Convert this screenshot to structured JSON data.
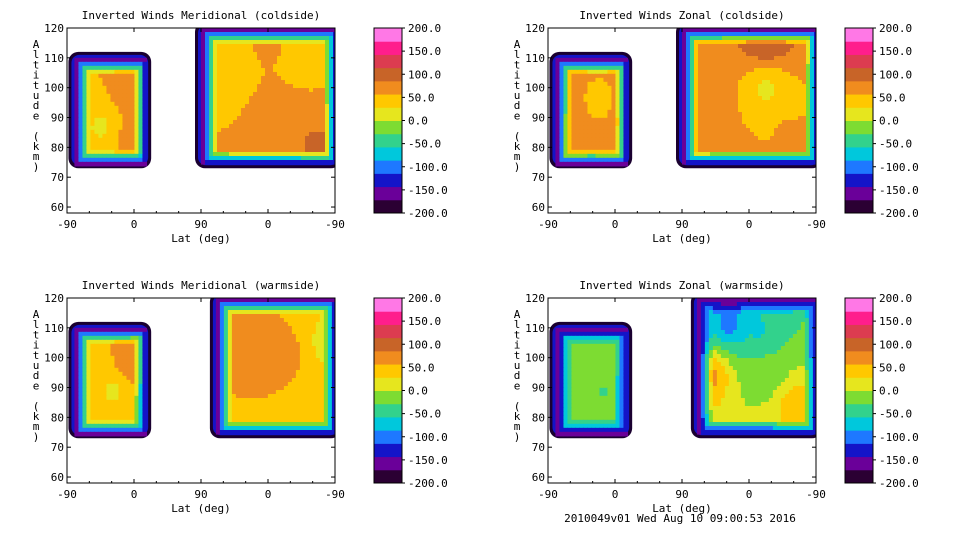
{
  "footer": "2010049v01 Wed Aug 10 09:00:53 2016",
  "colorbar": {
    "ticks": [
      "200.0",
      "150.0",
      "100.0",
      "50.0",
      "0.0",
      "-50.0",
      "-100.0",
      "-150.0",
      "-200.0"
    ],
    "colors": [
      "#2b0033",
      "#6a0099",
      "#1414c8",
      "#1e78ff",
      "#00c8dc",
      "#32d28c",
      "#7ddc32",
      "#e6e61e",
      "#ffc800",
      "#f08c1e",
      "#c86428",
      "#dc3c50",
      "#ff1e8c",
      "#ff78e6"
    ]
  },
  "chart_data": [
    {
      "type": "heatmap",
      "title": "Inverted Winds Meridional (coldside)",
      "xlabel": "Lat (deg)",
      "ylabel": "Altitude (km)",
      "xticks": [
        "-90",
        "0",
        "90",
        "0",
        "-90"
      ],
      "yticks": [
        "60",
        "70",
        "80",
        "90",
        "100",
        "110",
        "120"
      ],
      "ylim": [
        58,
        120
      ],
      "regions": [
        {
          "x": [
            -80,
            15
          ],
          "alt": [
            75,
            110
          ],
          "blobs": [
            [
              -45,
              88,
              20
            ],
            [
              10,
              97,
              90
            ],
            [
              -20,
              98,
              60
            ],
            [
              -5,
              85,
              70
            ]
          ]
        },
        {
          "x": [
            90,
            270
          ],
          "alt": [
            75,
            120
          ],
          "blobs": [
            [
              120,
              105,
              45
            ],
            [
              180,
              115,
              60
            ],
            [
              200,
              90,
              70
            ],
            [
              240,
              82,
              90
            ],
            [
              230,
              110,
              40
            ]
          ]
        }
      ]
    },
    {
      "type": "heatmap",
      "title": "Inverted Winds Zonal (coldside)",
      "xlabel": "Lat (deg)",
      "ylabel": "Altitude (km)",
      "xticks": [
        "-90",
        "0",
        "90",
        "0",
        "-90"
      ],
      "yticks": [
        "60",
        "70",
        "80",
        "90",
        "100",
        "110",
        "120"
      ],
      "ylim": [
        58,
        120
      ],
      "regions": [
        {
          "x": [
            -80,
            15
          ],
          "alt": [
            75,
            110
          ],
          "blobs": [
            [
              -70,
              85,
              90
            ],
            [
              -20,
              95,
              40
            ],
            [
              10,
              90,
              100
            ],
            [
              -40,
              82,
              60
            ]
          ]
        },
        {
          "x": [
            90,
            270
          ],
          "alt": [
            75,
            120
          ],
          "blobs": [
            [
              130,
              95,
              70
            ],
            [
              200,
              117,
              120
            ],
            [
              160,
              80,
              60
            ],
            [
              230,
              85,
              60
            ],
            [
              200,
              100,
              20
            ]
          ]
        }
      ]
    },
    {
      "type": "heatmap",
      "title": "Inverted Winds Meridional (warmside)",
      "xlabel": "Lat (deg)",
      "ylabel": "Altitude (km)",
      "xticks": [
        "-90",
        "0",
        "90",
        "0",
        "-90"
      ],
      "yticks": [
        "60",
        "70",
        "80",
        "90",
        "100",
        "110",
        "120"
      ],
      "ylim": [
        58,
        120
      ],
      "regions": [
        {
          "x": [
            -80,
            15
          ],
          "alt": [
            75,
            110
          ],
          "blobs": [
            [
              -60,
              100,
              40
            ],
            [
              -30,
              90,
              20
            ],
            [
              -10,
              98,
              70
            ],
            [
              10,
              102,
              100
            ]
          ]
        },
        {
          "x": [
            110,
            270
          ],
          "alt": [
            75,
            120
          ],
          "blobs": [
            [
              150,
              110,
              60
            ],
            [
              200,
              100,
              80
            ],
            [
              230,
              90,
              40
            ],
            [
              260,
              105,
              10
            ]
          ]
        }
      ]
    },
    {
      "type": "heatmap",
      "title": "Inverted Winds Zonal (warmside)",
      "xlabel": "Lat (deg)",
      "ylabel": "Altitude (km)",
      "xticks": [
        "-90",
        "0",
        "90",
        "0",
        "-90"
      ],
      "yticks": [
        "60",
        "70",
        "80",
        "90",
        "100",
        "110",
        "120"
      ],
      "ylim": [
        58,
        120
      ],
      "regions": [
        {
          "x": [
            -80,
            15
          ],
          "alt": [
            75,
            110
          ],
          "blobs": [
            [
              -50,
              95,
              -10
            ],
            [
              -20,
              90,
              -30
            ],
            [
              0,
              100,
              -20
            ]
          ]
        },
        {
          "x": [
            110,
            270
          ],
          "alt": [
            75,
            120
          ],
          "blobs": [
            [
              150,
              112,
              -100
            ],
            [
              190,
              110,
              -60
            ],
            [
              125,
              95,
              70
            ],
            [
              240,
              85,
              50
            ],
            [
              200,
              95,
              -20
            ]
          ]
        }
      ]
    }
  ]
}
